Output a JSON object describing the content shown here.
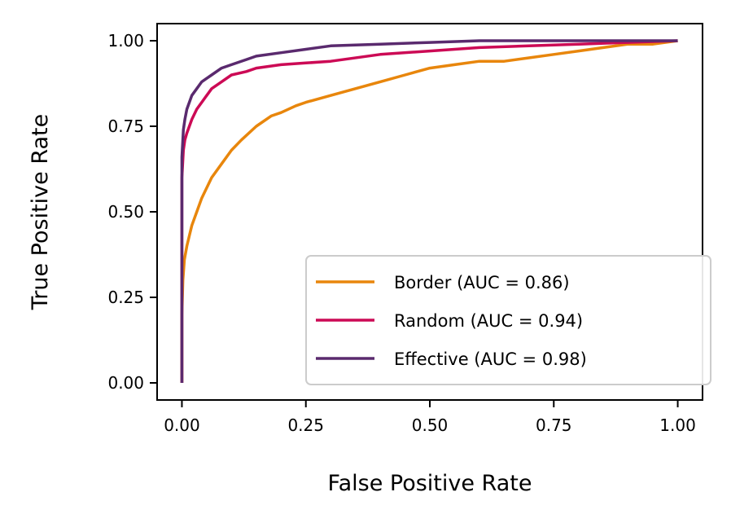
{
  "chart_data": {
    "type": "line",
    "title": "",
    "xlabel": "False Positive Rate",
    "ylabel": "True Positive Rate",
    "xlim": [
      -0.05,
      1.05
    ],
    "ylim": [
      -0.05,
      1.05
    ],
    "xticks": [
      "0.00",
      "0.25",
      "0.50",
      "0.75",
      "1.00"
    ],
    "yticks": [
      "0.00",
      "0.25",
      "0.50",
      "0.75",
      "1.00"
    ],
    "xtick_values": [
      0,
      0.25,
      0.5,
      0.75,
      1.0
    ],
    "ytick_values": [
      0,
      0.25,
      0.5,
      0.75,
      1.0
    ],
    "grid": false,
    "legend_position": "lower-right",
    "series": [
      {
        "name": "Border (AUC = 0.86)",
        "color": "#E8860C",
        "x": [
          0,
          0,
          0.002,
          0.005,
          0.01,
          0.015,
          0.02,
          0.03,
          0.04,
          0.05,
          0.06,
          0.08,
          0.1,
          0.12,
          0.15,
          0.18,
          0.2,
          0.23,
          0.25,
          0.3,
          0.35,
          0.4,
          0.45,
          0.5,
          0.55,
          0.6,
          0.65,
          0.7,
          0.75,
          0.8,
          0.85,
          0.9,
          0.95,
          1.0
        ],
        "y": [
          0,
          0.2,
          0.3,
          0.36,
          0.4,
          0.43,
          0.46,
          0.5,
          0.54,
          0.57,
          0.6,
          0.64,
          0.68,
          0.71,
          0.75,
          0.78,
          0.79,
          0.81,
          0.82,
          0.84,
          0.86,
          0.88,
          0.9,
          0.92,
          0.93,
          0.94,
          0.94,
          0.95,
          0.96,
          0.97,
          0.98,
          0.99,
          0.99,
          1.0
        ]
      },
      {
        "name": "Random (AUC = 0.94)",
        "color": "#CC0A55",
        "x": [
          0,
          0,
          0.003,
          0.006,
          0.01,
          0.015,
          0.02,
          0.03,
          0.04,
          0.05,
          0.06,
          0.08,
          0.1,
          0.13,
          0.15,
          0.2,
          0.25,
          0.3,
          0.4,
          0.5,
          0.6,
          0.7,
          0.8,
          0.9,
          1.0
        ],
        "y": [
          0,
          0.6,
          0.68,
          0.71,
          0.73,
          0.75,
          0.77,
          0.8,
          0.82,
          0.84,
          0.86,
          0.88,
          0.9,
          0.91,
          0.92,
          0.93,
          0.935,
          0.94,
          0.96,
          0.97,
          0.98,
          0.985,
          0.99,
          0.995,
          1.0
        ]
      },
      {
        "name": "Effective (AUC = 0.98)",
        "color": "#5A2A6E",
        "x": [
          0,
          0,
          0.003,
          0.006,
          0.01,
          0.015,
          0.02,
          0.03,
          0.04,
          0.05,
          0.06,
          0.08,
          0.1,
          0.13,
          0.15,
          0.2,
          0.25,
          0.3,
          0.4,
          0.5,
          0.6,
          0.7,
          0.8,
          0.9,
          1.0
        ],
        "y": [
          0,
          0.66,
          0.74,
          0.77,
          0.8,
          0.82,
          0.84,
          0.86,
          0.88,
          0.89,
          0.9,
          0.92,
          0.93,
          0.945,
          0.955,
          0.965,
          0.975,
          0.985,
          0.99,
          0.995,
          1.0,
          1.0,
          1.0,
          1.0,
          1.0
        ]
      }
    ]
  }
}
